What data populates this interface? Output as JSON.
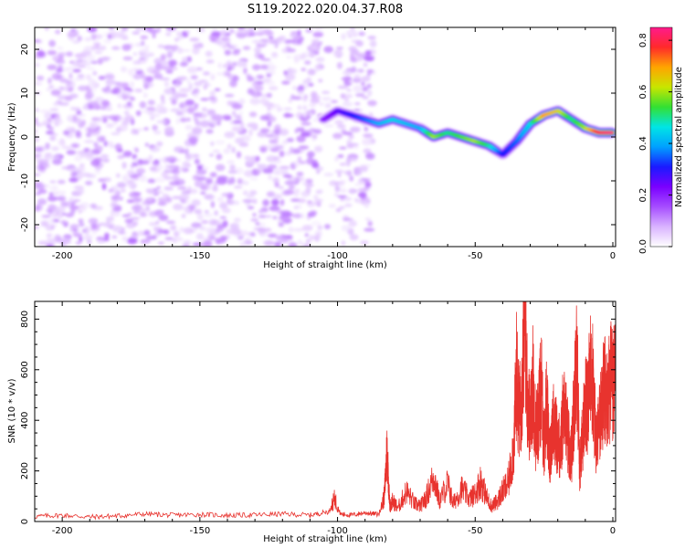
{
  "title": "S119.2022.020.04.37.R08",
  "colors": {
    "axis": "#000000",
    "snr_line": "#e8332e",
    "colormap": [
      "#ffffff",
      "#d9b3ff",
      "#a64dff",
      "#7a00ff",
      "#1a1aff",
      "#00a0ff",
      "#00e5e5",
      "#33e033",
      "#c8e600",
      "#ffa500",
      "#ff2a2a",
      "#ff1a8c"
    ]
  },
  "chart_data": [
    {
      "type": "heatmap",
      "title": "",
      "xlabel": "Height of straight line (km)",
      "ylabel": "Frequency (Hz)",
      "xlim": [
        -210,
        1
      ],
      "ylim": [
        -25,
        25
      ],
      "x_ticks": [
        -200,
        -150,
        -100,
        -50,
        0
      ],
      "x_tick_labels": [
        "-200",
        "-150",
        "-100",
        "-50",
        "0"
      ],
      "y_ticks": [
        -20,
        -10,
        0,
        10,
        20
      ],
      "y_tick_labels": [
        "-20",
        "-10",
        "0",
        "10",
        "20"
      ],
      "colorbar": {
        "label": "Normalized spectral amplitude",
        "range": [
          0,
          0.85
        ],
        "ticks": [
          0.0,
          0.2,
          0.4,
          0.6,
          0.8
        ],
        "tick_labels": [
          "0.0",
          "0.2",
          "0.4",
          "0.6",
          "0.8"
        ]
      },
      "noise_region": {
        "x_range": [
          -210,
          -87
        ],
        "amplitude": 0.12
      },
      "signal_track": {
        "x": [
          -105,
          -100,
          -95,
          -90,
          -85,
          -80,
          -75,
          -70,
          -65,
          -60,
          -55,
          -50,
          -45,
          -40,
          -35,
          -30,
          -25,
          -20,
          -15,
          -10,
          -5,
          0
        ],
        "frequency": [
          4,
          6,
          5,
          4,
          3,
          4,
          3,
          2,
          0,
          1,
          0,
          -1,
          -2,
          -4,
          -1,
          3,
          5,
          6,
          4,
          2,
          1,
          1
        ],
        "amplitude": [
          0.2,
          0.25,
          0.3,
          0.35,
          0.4,
          0.45,
          0.42,
          0.4,
          0.6,
          0.5,
          0.55,
          0.6,
          0.5,
          0.3,
          0.35,
          0.45,
          0.7,
          0.65,
          0.5,
          0.6,
          0.8,
          0.85
        ]
      }
    },
    {
      "type": "line",
      "title": "",
      "xlabel": "Height of straight line (km)",
      "ylabel": "SNR (10 * v/v)",
      "xlim": [
        -210,
        1
      ],
      "ylim": [
        0,
        870
      ],
      "x_ticks": [
        -200,
        -150,
        -100,
        -50,
        0
      ],
      "x_tick_labels": [
        "-200",
        "-150",
        "-100",
        "-50",
        "0"
      ],
      "y_ticks": [
        0,
        200,
        400,
        600,
        800
      ],
      "y_tick_labels": [
        "0",
        "200",
        "400",
        "600",
        "800"
      ],
      "series": [
        {
          "x": [
            -210,
            -200,
            -190,
            -180,
            -170,
            -160,
            -150,
            -140,
            -130,
            -120,
            -110,
            -103,
            -101,
            -99,
            -95,
            -90,
            -85,
            -83,
            -82,
            -81,
            -80,
            -78,
            -75,
            -72,
            -70,
            -68,
            -65,
            -63,
            -60,
            -58,
            -55,
            -52,
            -50,
            -48,
            -46,
            -44,
            -42,
            -40,
            -38,
            -36,
            -35,
            -34,
            -33,
            -32,
            -31,
            -30,
            -29,
            -28,
            -27,
            -26,
            -25,
            -24,
            -23,
            -22,
            -21,
            -20,
            -19,
            -18,
            -17,
            -16,
            -15,
            -14,
            -13,
            -12,
            -11,
            -10,
            -9,
            -8,
            -7,
            -6,
            -5,
            -4,
            -3,
            -2,
            -1,
            0,
            1
          ],
          "y": [
            20,
            25,
            18,
            22,
            30,
            25,
            28,
            24,
            26,
            30,
            25,
            40,
            90,
            30,
            25,
            35,
            28,
            100,
            290,
            60,
            80,
            55,
            120,
            70,
            60,
            90,
            180,
            80,
            150,
            70,
            130,
            90,
            110,
            160,
            100,
            60,
            80,
            120,
            150,
            300,
            580,
            420,
            520,
            860,
            500,
            380,
            560,
            350,
            420,
            540,
            300,
            480,
            240,
            390,
            360,
            330,
            280,
            440,
            400,
            310,
            260,
            500,
            640,
            200,
            340,
            460,
            440,
            700,
            480,
            300,
            380,
            460,
            520,
            470,
            560,
            540,
            545
          ]
        }
      ]
    }
  ]
}
